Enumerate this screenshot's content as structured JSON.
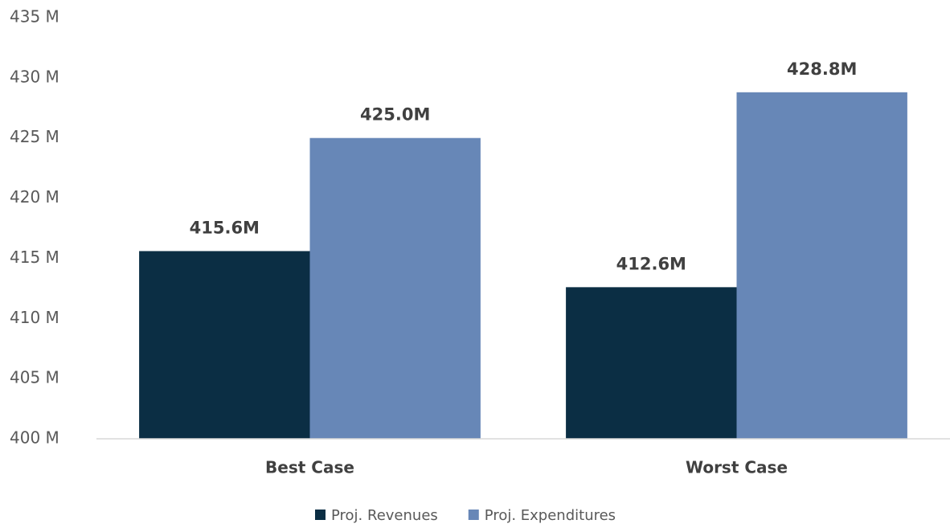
{
  "chart_data": {
    "type": "bar",
    "categories": [
      "Best Case",
      "Worst Case"
    ],
    "series": [
      {
        "name": "Proj. Revenues",
        "color": "#0b2e44",
        "values": [
          415.6,
          412.6
        ],
        "value_labels": [
          "415.6M",
          "412.6M"
        ]
      },
      {
        "name": "Proj. Expenditures",
        "color": "#6787b7",
        "values": [
          425.0,
          428.8
        ],
        "value_labels": [
          "425.0M",
          "428.8M"
        ]
      }
    ],
    "ylim": [
      400,
      435
    ],
    "yticks": [
      {
        "value": 400,
        "label": "400 M"
      },
      {
        "value": 405,
        "label": "405 M"
      },
      {
        "value": 410,
        "label": "410 M"
      },
      {
        "value": 415,
        "label": "415 M"
      },
      {
        "value": 420,
        "label": "420 M"
      },
      {
        "value": 425,
        "label": "425 M"
      },
      {
        "value": 430,
        "label": "430 M"
      },
      {
        "value": 435,
        "label": "435 M"
      }
    ],
    "grid": false,
    "legend": "bottom"
  }
}
